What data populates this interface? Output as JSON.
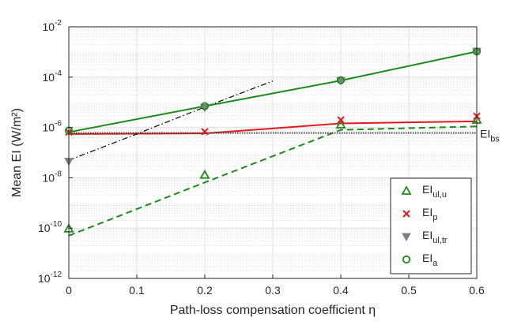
{
  "chart_data": {
    "type": "line",
    "title": "",
    "xlabel": "Path-loss compensation coefficient η",
    "ylabel": "Mean EI (W/m²)",
    "x_ticks": [
      "0",
      "0.1",
      "0.2",
      "0.3",
      "0.4",
      "0.5",
      "0.6"
    ],
    "y_ticks": [
      {
        "base": "10",
        "exp": "-12"
      },
      {
        "base": "10",
        "exp": "-10"
      },
      {
        "base": "10",
        "exp": "-8"
      },
      {
        "base": "10",
        "exp": "-6"
      },
      {
        "base": "10",
        "exp": "-4"
      },
      {
        "base": "10",
        "exp": "-2"
      }
    ],
    "xlim": [
      0,
      0.6
    ],
    "ylim": [
      1e-12,
      0.01
    ],
    "yscale": "log",
    "grid": true,
    "minor_grid": true,
    "legend_position": "bottom-right",
    "x": [
      0,
      0.2,
      0.4,
      0.6
    ],
    "markers": [
      {
        "name": "EI",
        "sub": "ul,u",
        "marker": "triangle-up",
        "color": "#1a8a1a",
        "values": [
          9.5e-11,
          1.3e-08,
          1.3e-06,
          2e-06
        ]
      },
      {
        "name": "EI",
        "sub": "p",
        "marker": "x",
        "color": "#e31a1c",
        "values": [
          6.5e-07,
          6.8e-07,
          2e-06,
          2.8e-06
        ]
      },
      {
        "name": "EI",
        "sub": "ul,tr",
        "marker": "triangle-down",
        "color": "#808080",
        "values": [
          4.5e-08,
          6.2e-06,
          7.3e-05,
          0.00105
        ]
      },
      {
        "name": "EI",
        "sub": "a",
        "marker": "circle",
        "color": "#1a8a1a",
        "values": [
          7.5e-07,
          7e-06,
          7.5e-05,
          0.00105
        ]
      }
    ],
    "lines": [
      {
        "color": "#1a8a1a",
        "style": "dashed",
        "values": [
          5e-11,
          6.5e-09,
          8e-07,
          1.1e-06
        ]
      },
      {
        "color": "#e31a1c",
        "style": "solid",
        "values": [
          5.5e-07,
          5.8e-07,
          1.45e-06,
          1.75e-06
        ]
      },
      {
        "color": "#000000",
        "style": "dashdot",
        "values": [
          5e-08,
          5.5e-07,
          6.5e-06,
          7e-05
        ],
        "x": [
          0,
          0.1,
          0.2,
          0.3
        ]
      },
      {
        "color": "#1a8a1a",
        "style": "solid",
        "values": [
          6.5e-07,
          7e-06,
          7.3e-05,
          0.00105
        ]
      }
    ],
    "baseline": {
      "name": "EI",
      "sub": "bs",
      "value": 6e-07,
      "color": "#404040"
    }
  }
}
